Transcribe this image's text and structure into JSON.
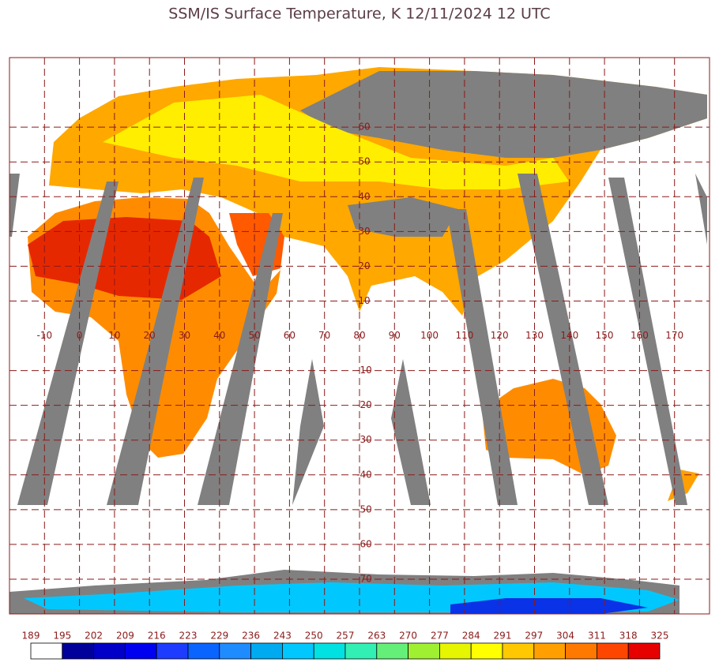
{
  "title": "SSM/IS Surface Temperature, K 12/11/2024 12 UTC",
  "map": {
    "xlim": [
      -20,
      180
    ],
    "ylim": [
      -80,
      80
    ],
    "xticks": [
      -10,
      0,
      10,
      20,
      30,
      40,
      50,
      60,
      70,
      80,
      90,
      100,
      110,
      120,
      130,
      140,
      150,
      160,
      170
    ],
    "yticks": [
      60,
      50,
      40,
      30,
      20,
      10,
      -10,
      -20,
      -30,
      -40,
      -50,
      -60,
      -70
    ],
    "grid_color": "#8b1a1a"
  },
  "colorbar": {
    "ticks": [
      189,
      195,
      202,
      209,
      216,
      223,
      229,
      236,
      243,
      250,
      257,
      263,
      270,
      277,
      284,
      291,
      297,
      304,
      311,
      318,
      325
    ],
    "colors": [
      "#ffffff",
      "#00009b",
      "#0000c8",
      "#0000f0",
      "#1e3cff",
      "#0a64ff",
      "#1e8cff",
      "#00aaf0",
      "#00c8ff",
      "#00e1e1",
      "#32f0b4",
      "#64f078",
      "#a0f032",
      "#e6f500",
      "#ffff00",
      "#ffc800",
      "#ffa000",
      "#ff7800",
      "#ff4600",
      "#e60000",
      "#a00000"
    ]
  }
}
